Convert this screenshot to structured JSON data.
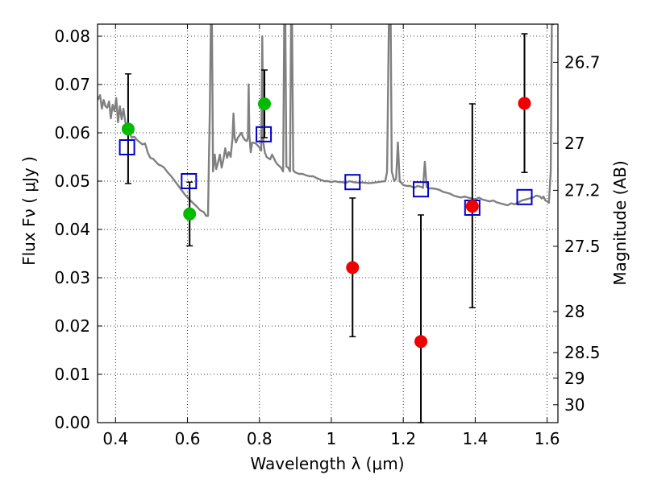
{
  "chart_data": {
    "type": "scatter",
    "title": "",
    "xlabel": "Wavelength  λ (μm)",
    "ylabel": "Flux  Fν  ( μJy )",
    "ylabel_right": "Magnitude (AB)",
    "xlim": [
      0.35,
      1.63
    ],
    "ylim": [
      0.0,
      0.0825
    ],
    "grid": true,
    "grid_style": "dotted",
    "x_ticks": [
      0.4,
      0.6,
      0.8,
      1.0,
      1.2,
      1.4,
      1.6
    ],
    "x_tick_labels": [
      "0.4",
      "0.6",
      "0.8",
      "1",
      "1.2",
      "1.4",
      "1.6"
    ],
    "y_ticks": [
      0.0,
      0.01,
      0.02,
      0.03,
      0.04,
      0.05,
      0.06,
      0.07,
      0.08
    ],
    "y_tick_labels": [
      "0.00",
      "0.01",
      "0.02",
      "0.03",
      "0.04",
      "0.05",
      "0.06",
      "0.07",
      "0.08"
    ],
    "right_axis_ticks": [
      {
        "label": "26.7",
        "flux": 0.0746
      },
      {
        "label": "27",
        "flux": 0.0578
      },
      {
        "label": "27.2",
        "flux": 0.0481
      },
      {
        "label": "27.5",
        "flux": 0.0365
      },
      {
        "label": "28",
        "flux": 0.023
      },
      {
        "label": "28.5",
        "flux": 0.0145
      },
      {
        "label": "29",
        "flux": 0.0092
      },
      {
        "label": "30",
        "flux": 0.0037
      }
    ],
    "colors": {
      "optical_points": "#00bb00",
      "nir_points": "#ee0000",
      "model_boxes": "#0000cc",
      "sed_line": "#808080",
      "errorbar": "#000000"
    },
    "series": [
      {
        "points": [
          {
            "x": 0.435,
            "y": 0.0608,
            "ylow": 0.0495,
            "yhigh": 0.0722
          },
          {
            "x": 0.606,
            "y": 0.0432,
            "ylow": 0.0366,
            "yhigh": 0.0498
          },
          {
            "x": 0.814,
            "y": 0.066,
            "ylow": 0.059,
            "yhigh": 0.073
          }
        ]
      },
      {
        "points": [
          {
            "x": 1.059,
            "y": 0.0321,
            "ylow": 0.0178,
            "yhigh": 0.0465
          },
          {
            "x": 1.249,
            "y": 0.0168,
            "ylow": 0.0,
            "yhigh": 0.043
          },
          {
            "x": 1.392,
            "y": 0.0448,
            "ylow": 0.0238,
            "yhigh": 0.066
          },
          {
            "x": 1.537,
            "y": 0.0661,
            "ylow": 0.0518,
            "yhigh": 0.0805
          }
        ]
      },
      {
        "points": [
          {
            "x": 0.432,
            "y": 0.057
          },
          {
            "x": 0.604,
            "y": 0.05
          },
          {
            "x": 0.812,
            "y": 0.0597
          },
          {
            "x": 1.059,
            "y": 0.0498
          },
          {
            "x": 1.249,
            "y": 0.0483
          },
          {
            "x": 1.392,
            "y": 0.0445
          },
          {
            "x": 1.537,
            "y": 0.0467
          }
        ]
      },
      {
        "line": [
          [
            0.35,
            0.0668
          ],
          [
            0.357,
            0.0678
          ],
          [
            0.362,
            0.065
          ],
          [
            0.367,
            0.0668
          ],
          [
            0.372,
            0.0655
          ],
          [
            0.377,
            0.0652
          ],
          [
            0.382,
            0.0665
          ],
          [
            0.387,
            0.063
          ],
          [
            0.392,
            0.0658
          ],
          [
            0.397,
            0.0645
          ],
          [
            0.402,
            0.0672
          ],
          [
            0.407,
            0.0622
          ],
          [
            0.412,
            0.0655
          ],
          [
            0.417,
            0.0628
          ],
          [
            0.422,
            0.065
          ],
          [
            0.427,
            0.0624
          ],
          [
            0.432,
            0.061
          ],
          [
            0.438,
            0.06
          ],
          [
            0.445,
            0.059
          ],
          [
            0.452,
            0.0592
          ],
          [
            0.46,
            0.0585
          ],
          [
            0.468,
            0.058
          ],
          [
            0.475,
            0.0576
          ],
          [
            0.482,
            0.0578
          ],
          [
            0.49,
            0.0558
          ],
          [
            0.497,
            0.0548
          ],
          [
            0.505,
            0.0546
          ],
          [
            0.512,
            0.054
          ],
          [
            0.52,
            0.0534
          ],
          [
            0.527,
            0.0532
          ],
          [
            0.535,
            0.0528
          ],
          [
            0.545,
            0.0518
          ],
          [
            0.555,
            0.051
          ],
          [
            0.565,
            0.05
          ],
          [
            0.575,
            0.049
          ],
          [
            0.585,
            0.048
          ],
          [
            0.595,
            0.047
          ],
          [
            0.605,
            0.0462
          ],
          [
            0.615,
            0.0455
          ],
          [
            0.625,
            0.0448
          ],
          [
            0.635,
            0.044
          ],
          [
            0.645,
            0.0436
          ],
          [
            0.652,
            0.0428
          ],
          [
            0.657,
            0.0428
          ],
          [
            0.66,
            0.056
          ],
          [
            0.662,
            0.064
          ],
          [
            0.665,
            0.0825
          ],
          [
            0.668,
            0.0825
          ],
          [
            0.671,
            0.052
          ],
          [
            0.676,
            0.0555
          ],
          [
            0.68,
            0.0525
          ],
          [
            0.685,
            0.0538
          ],
          [
            0.69,
            0.0555
          ],
          [
            0.695,
            0.0528
          ],
          [
            0.7,
            0.0545
          ],
          [
            0.705,
            0.0568
          ],
          [
            0.71,
            0.0548
          ],
          [
            0.715,
            0.056
          ],
          [
            0.72,
            0.055
          ],
          [
            0.725,
            0.0588
          ],
          [
            0.728,
            0.064
          ],
          [
            0.731,
            0.059
          ],
          [
            0.735,
            0.058
          ],
          [
            0.74,
            0.059
          ],
          [
            0.745,
            0.0595
          ],
          [
            0.75,
            0.06
          ],
          [
            0.755,
            0.059
          ],
          [
            0.76,
            0.0585
          ],
          [
            0.765,
            0.0583
          ],
          [
            0.768,
            0.059
          ],
          [
            0.77,
            0.07
          ],
          [
            0.772,
            0.0595
          ],
          [
            0.776,
            0.056
          ],
          [
            0.78,
            0.058
          ],
          [
            0.79,
            0.0578
          ],
          [
            0.8,
            0.057
          ],
          [
            0.805,
            0.0563
          ],
          [
            0.808,
            0.08
          ],
          [
            0.811,
            0.058
          ],
          [
            0.815,
            0.056
          ],
          [
            0.82,
            0.055
          ],
          [
            0.83,
            0.0545
          ],
          [
            0.835,
            0.0555
          ],
          [
            0.84,
            0.0548
          ],
          [
            0.845,
            0.054
          ],
          [
            0.85,
            0.0535
          ],
          [
            0.86,
            0.0528
          ],
          [
            0.866,
            0.052
          ],
          [
            0.869,
            0.0825
          ],
          [
            0.872,
            0.0825
          ],
          [
            0.875,
            0.053
          ],
          [
            0.88,
            0.0528
          ],
          [
            0.885,
            0.052
          ],
          [
            0.888,
            0.0825
          ],
          [
            0.891,
            0.0825
          ],
          [
            0.894,
            0.0522
          ],
          [
            0.9,
            0.0518
          ],
          [
            0.91,
            0.0515
          ],
          [
            0.92,
            0.0515
          ],
          [
            0.93,
            0.0512
          ],
          [
            0.94,
            0.051
          ],
          [
            0.95,
            0.051
          ],
          [
            0.96,
            0.0506
          ],
          [
            0.97,
            0.0503
          ],
          [
            0.98,
            0.05
          ],
          [
            0.99,
            0.05
          ],
          [
            1.0,
            0.0498
          ],
          [
            1.01,
            0.05
          ],
          [
            1.02,
            0.0498
          ],
          [
            1.03,
            0.0498
          ],
          [
            1.04,
            0.0496
          ],
          [
            1.05,
            0.05
          ],
          [
            1.06,
            0.0498
          ],
          [
            1.07,
            0.0497
          ],
          [
            1.08,
            0.0497
          ],
          [
            1.09,
            0.0497
          ],
          [
            1.1,
            0.0496
          ],
          [
            1.11,
            0.0496
          ],
          [
            1.12,
            0.0497
          ],
          [
            1.13,
            0.0498
          ],
          [
            1.14,
            0.0499
          ],
          [
            1.15,
            0.05
          ],
          [
            1.155,
            0.052
          ],
          [
            1.16,
            0.0825
          ],
          [
            1.165,
            0.0825
          ],
          [
            1.168,
            0.052
          ],
          [
            1.175,
            0.05
          ],
          [
            1.18,
            0.0505
          ],
          [
            1.185,
            0.058
          ],
          [
            1.19,
            0.05
          ],
          [
            1.2,
            0.0492
          ],
          [
            1.21,
            0.049
          ],
          [
            1.22,
            0.049
          ],
          [
            1.23,
            0.0486
          ],
          [
            1.24,
            0.049
          ],
          [
            1.25,
            0.0488
          ],
          [
            1.255,
            0.0486
          ],
          [
            1.26,
            0.054
          ],
          [
            1.265,
            0.0488
          ],
          [
            1.27,
            0.0485
          ],
          [
            1.28,
            0.0485
          ],
          [
            1.29,
            0.0484
          ],
          [
            1.3,
            0.0482
          ],
          [
            1.31,
            0.0478
          ],
          [
            1.32,
            0.0476
          ],
          [
            1.33,
            0.0474
          ],
          [
            1.34,
            0.047
          ],
          [
            1.35,
            0.0468
          ],
          [
            1.36,
            0.0466
          ],
          [
            1.37,
            0.0468
          ],
          [
            1.38,
            0.0466
          ],
          [
            1.39,
            0.0464
          ],
          [
            1.4,
            0.0462
          ],
          [
            1.41,
            0.0466
          ],
          [
            1.42,
            0.0462
          ],
          [
            1.43,
            0.046
          ],
          [
            1.44,
            0.0458
          ],
          [
            1.45,
            0.046
          ],
          [
            1.46,
            0.0456
          ],
          [
            1.47,
            0.0454
          ],
          [
            1.48,
            0.0452
          ],
          [
            1.49,
            0.045
          ],
          [
            1.5,
            0.0454
          ],
          [
            1.51,
            0.0452
          ],
          [
            1.52,
            0.0456
          ],
          [
            1.53,
            0.046
          ],
          [
            1.54,
            0.0462
          ],
          [
            1.55,
            0.0464
          ],
          [
            1.56,
            0.0466
          ],
          [
            1.57,
            0.047
          ],
          [
            1.58,
            0.0468
          ],
          [
            1.585,
            0.0464
          ],
          [
            1.59,
            0.0468
          ],
          [
            1.595,
            0.046
          ],
          [
            1.6,
            0.0458
          ],
          [
            1.605,
            0.0455
          ],
          [
            1.61,
            0.052
          ],
          [
            1.613,
            0.0825
          ],
          [
            1.616,
            0.0825
          ],
          [
            1.62,
            0.0825
          ]
        ]
      }
    ]
  }
}
